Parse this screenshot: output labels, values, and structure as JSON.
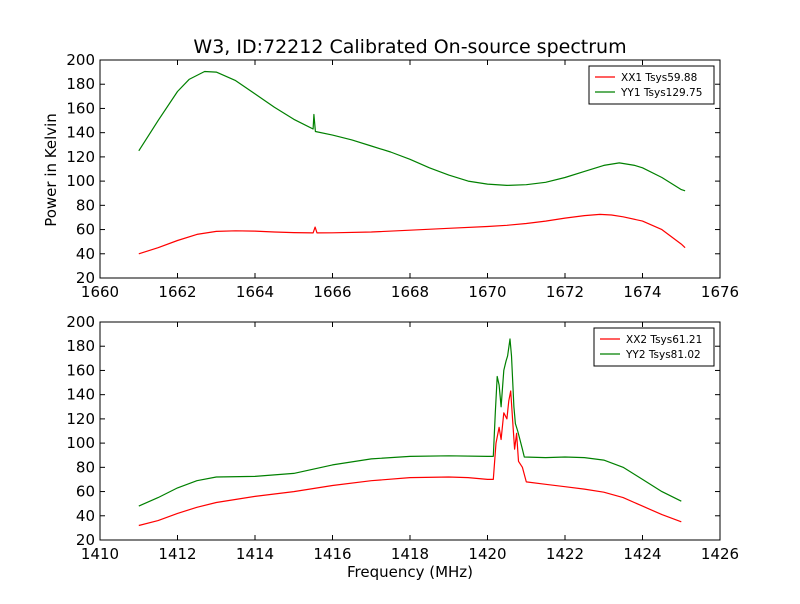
{
  "figure": {
    "title": "W3, ID:72212 Calibrated On-source spectrum",
    "ylabel": "Power in Kelvin",
    "xlabel": "Frequency (MHz)"
  },
  "colors": {
    "red": "#ff0000",
    "green": "#008000"
  },
  "chart_data": [
    {
      "type": "line",
      "xlim": [
        1660,
        1676
      ],
      "ylim": [
        20,
        200
      ],
      "xticks": [
        1660,
        1662,
        1664,
        1666,
        1668,
        1670,
        1672,
        1674,
        1676
      ],
      "yticks": [
        20,
        40,
        60,
        80,
        100,
        120,
        140,
        160,
        180,
        200
      ],
      "grid": false,
      "legend": "top-right",
      "series": [
        {
          "name": "XX1 Tsys59.88",
          "color": "#ff0000",
          "points": [
            [
              1661,
              40
            ],
            [
              1661.5,
              45
            ],
            [
              1662,
              51
            ],
            [
              1662.5,
              56
            ],
            [
              1663,
              58.5
            ],
            [
              1663.5,
              59
            ],
            [
              1664,
              58.7
            ],
            [
              1664.5,
              58
            ],
            [
              1665,
              57.5
            ],
            [
              1665.5,
              57.2
            ],
            [
              1665.55,
              62
            ],
            [
              1665.6,
              57.2
            ],
            [
              1666,
              57.3
            ],
            [
              1667,
              58
            ],
            [
              1668,
              59.5
            ],
            [
              1669,
              61
            ],
            [
              1670,
              62.5
            ],
            [
              1670.5,
              63.5
            ],
            [
              1671,
              65
            ],
            [
              1671.5,
              67
            ],
            [
              1672,
              69.5
            ],
            [
              1672.5,
              71.5
            ],
            [
              1672.9,
              72.5
            ],
            [
              1673.2,
              72
            ],
            [
              1673.5,
              70.5
            ],
            [
              1674,
              67
            ],
            [
              1674.5,
              60
            ],
            [
              1675,
              48
            ],
            [
              1675.1,
              45
            ]
          ]
        },
        {
          "name": "YY1 Tsys129.75",
          "color": "#008000",
          "points": [
            [
              1661,
              125
            ],
            [
              1661.5,
              150
            ],
            [
              1662,
              174
            ],
            [
              1662.3,
              184
            ],
            [
              1662.7,
              190.5
            ],
            [
              1663,
              190
            ],
            [
              1663.5,
              183
            ],
            [
              1664,
              172
            ],
            [
              1664.5,
              161
            ],
            [
              1665,
              151
            ],
            [
              1665.5,
              143
            ],
            [
              1665.52,
              155
            ],
            [
              1665.56,
              141
            ],
            [
              1666,
              138
            ],
            [
              1666.5,
              134
            ],
            [
              1667,
              129
            ],
            [
              1667.5,
              124
            ],
            [
              1668,
              118
            ],
            [
              1668.5,
              111
            ],
            [
              1669,
              105
            ],
            [
              1669.5,
              100
            ],
            [
              1670,
              97.5
            ],
            [
              1670.5,
              96.5
            ],
            [
              1671,
              97
            ],
            [
              1671.5,
              99
            ],
            [
              1672,
              103
            ],
            [
              1672.5,
              108
            ],
            [
              1673,
              113
            ],
            [
              1673.4,
              115
            ],
            [
              1673.8,
              113
            ],
            [
              1674,
              111
            ],
            [
              1674.5,
              103
            ],
            [
              1675,
              93
            ],
            [
              1675.1,
              92
            ]
          ]
        }
      ]
    },
    {
      "type": "line",
      "xlim": [
        1410,
        1426
      ],
      "ylim": [
        20,
        200
      ],
      "xticks": [
        1410,
        1412,
        1414,
        1416,
        1418,
        1420,
        1422,
        1424,
        1426
      ],
      "yticks": [
        20,
        40,
        60,
        80,
        100,
        120,
        140,
        160,
        180,
        200
      ],
      "grid": false,
      "legend": "top-right",
      "series": [
        {
          "name": "XX2 Tsys61.21",
          "color": "#ff0000",
          "points": [
            [
              1411,
              32
            ],
            [
              1411.5,
              36
            ],
            [
              1412,
              42
            ],
            [
              1412.5,
              47
            ],
            [
              1413,
              51
            ],
            [
              1414,
              56
            ],
            [
              1415,
              60
            ],
            [
              1416,
              65
            ],
            [
              1417,
              69
            ],
            [
              1418,
              71.5
            ],
            [
              1419,
              72
            ],
            [
              1419.5,
              71.5
            ],
            [
              1420,
              70
            ],
            [
              1420.15,
              70
            ],
            [
              1420.22,
              100
            ],
            [
              1420.3,
              113
            ],
            [
              1420.35,
              103
            ],
            [
              1420.42,
              125
            ],
            [
              1420.5,
              120
            ],
            [
              1420.55,
              135
            ],
            [
              1420.6,
              143
            ],
            [
              1420.65,
              118
            ],
            [
              1420.7,
              95
            ],
            [
              1420.75,
              108
            ],
            [
              1420.8,
              85
            ],
            [
              1420.9,
              80
            ],
            [
              1421,
              68
            ],
            [
              1421.5,
              66
            ],
            [
              1422,
              64
            ],
            [
              1422.5,
              62
            ],
            [
              1423,
              59.5
            ],
            [
              1423.5,
              55
            ],
            [
              1424,
              48
            ],
            [
              1424.5,
              41
            ],
            [
              1425,
              35
            ]
          ]
        },
        {
          "name": "YY2 Tsys81.02",
          "color": "#008000",
          "points": [
            [
              1411,
              48
            ],
            [
              1411.5,
              55
            ],
            [
              1412,
              63
            ],
            [
              1412.5,
              69
            ],
            [
              1413,
              72
            ],
            [
              1414,
              72.5
            ],
            [
              1415,
              75
            ],
            [
              1416,
              82
            ],
            [
              1417,
              87
            ],
            [
              1418,
              89
            ],
            [
              1419,
              89.5
            ],
            [
              1420,
              89
            ],
            [
              1420.15,
              89
            ],
            [
              1420.2,
              125
            ],
            [
              1420.25,
              155
            ],
            [
              1420.3,
              148
            ],
            [
              1420.35,
              130
            ],
            [
              1420.42,
              160
            ],
            [
              1420.48,
              168
            ],
            [
              1420.52,
              172
            ],
            [
              1420.58,
              186
            ],
            [
              1420.62,
              172
            ],
            [
              1420.68,
              130
            ],
            [
              1420.72,
              116
            ],
            [
              1420.78,
              110
            ],
            [
              1420.82,
              105
            ],
            [
              1420.9,
              95
            ],
            [
              1420.95,
              88.5
            ],
            [
              1421.5,
              88
            ],
            [
              1422,
              88.5
            ],
            [
              1422.5,
              88
            ],
            [
              1423,
              86
            ],
            [
              1423.5,
              80
            ],
            [
              1424,
              70
            ],
            [
              1424.5,
              60
            ],
            [
              1425,
              52
            ]
          ]
        }
      ]
    }
  ]
}
